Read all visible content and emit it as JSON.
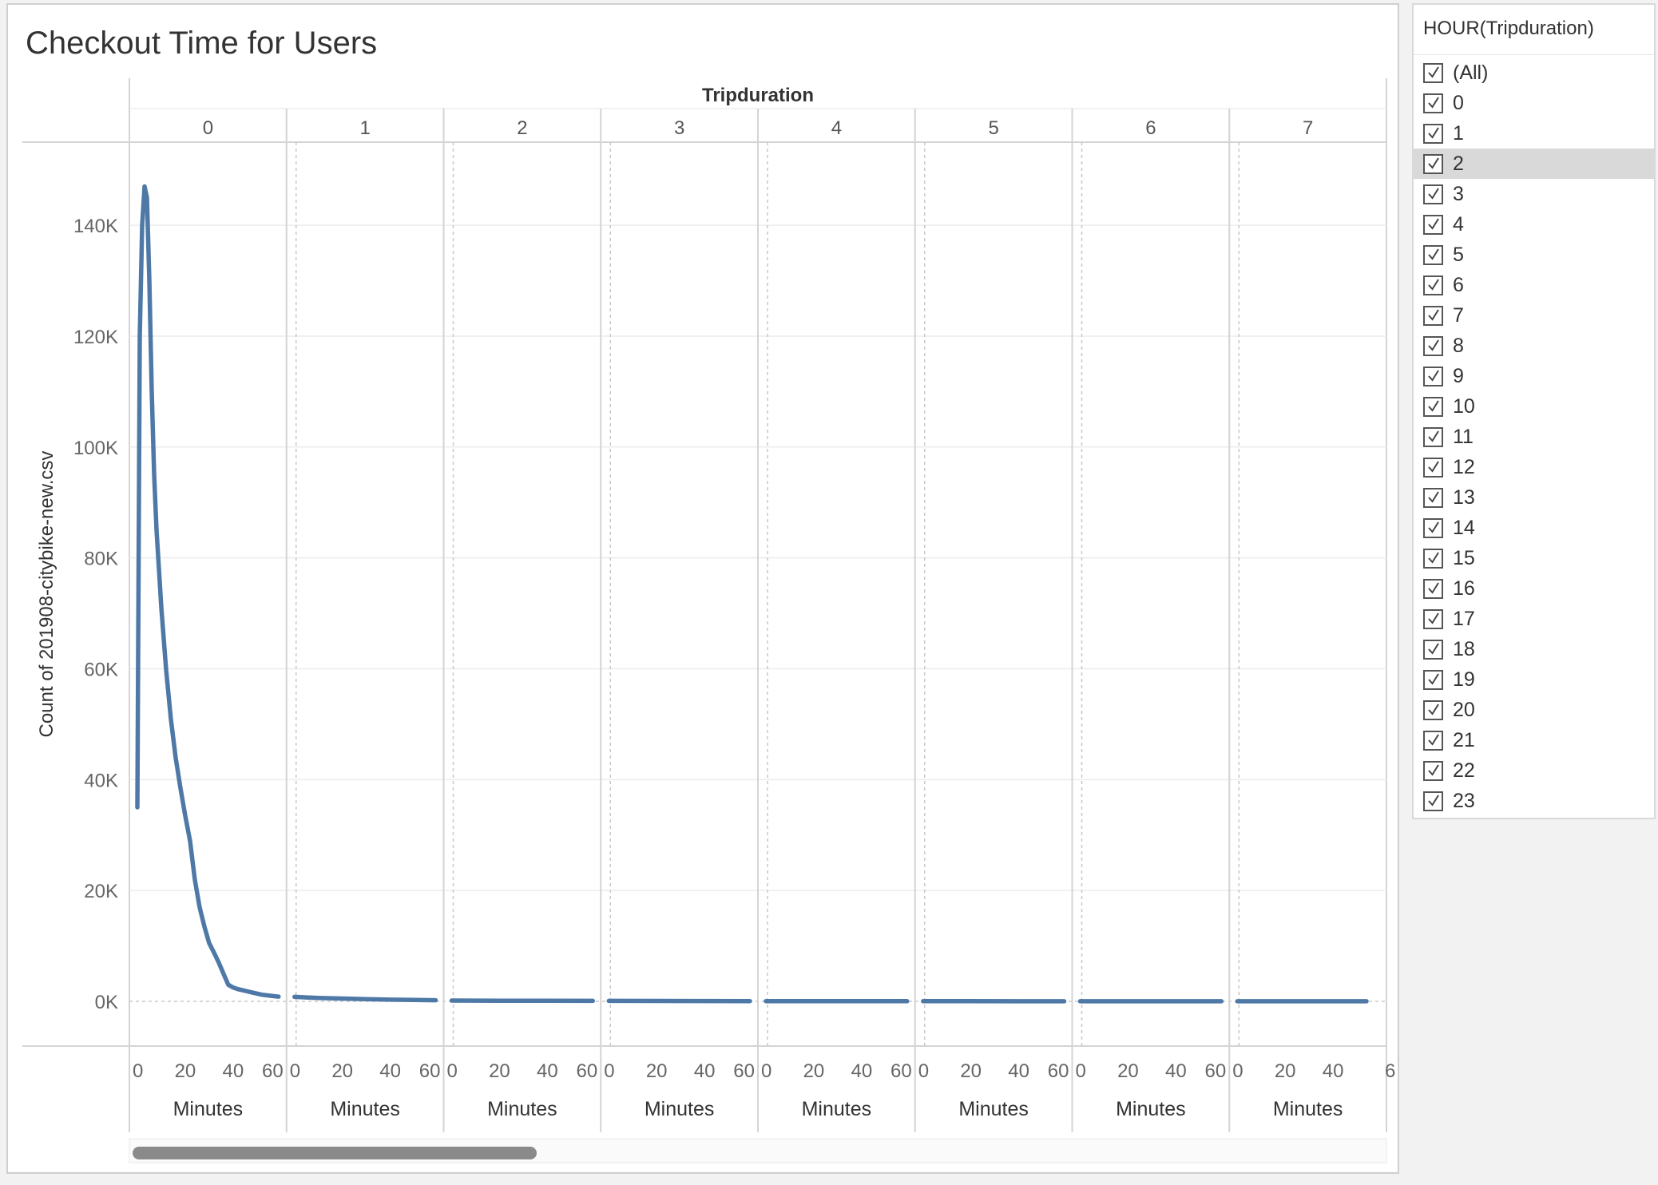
{
  "title": "Checkout Time for Users",
  "filter": {
    "title": "HOUR(Tripduration)",
    "items": [
      {
        "label": "(All)",
        "checked": true
      },
      {
        "label": "0",
        "checked": true
      },
      {
        "label": "1",
        "checked": true
      },
      {
        "label": "2",
        "checked": true,
        "highlighted": true
      },
      {
        "label": "3",
        "checked": true
      },
      {
        "label": "4",
        "checked": true
      },
      {
        "label": "5",
        "checked": true
      },
      {
        "label": "6",
        "checked": true
      },
      {
        "label": "7",
        "checked": true
      },
      {
        "label": "8",
        "checked": true
      },
      {
        "label": "9",
        "checked": true
      },
      {
        "label": "10",
        "checked": true
      },
      {
        "label": "11",
        "checked": true
      },
      {
        "label": "12",
        "checked": true
      },
      {
        "label": "13",
        "checked": true
      },
      {
        "label": "14",
        "checked": true
      },
      {
        "label": "15",
        "checked": true
      },
      {
        "label": "16",
        "checked": true
      },
      {
        "label": "17",
        "checked": true
      },
      {
        "label": "18",
        "checked": true
      },
      {
        "label": "19",
        "checked": true
      },
      {
        "label": "20",
        "checked": true
      },
      {
        "label": "21",
        "checked": true
      },
      {
        "label": "22",
        "checked": true
      },
      {
        "label": "23",
        "checked": true
      }
    ]
  },
  "chart_data": {
    "type": "line",
    "title": "Checkout Time for Users",
    "column_header_title": "Tripduration",
    "panels": [
      "0",
      "1",
      "2",
      "3",
      "4",
      "5",
      "6",
      "7"
    ],
    "xlabel": "Minutes",
    "ylabel": "Count of 201908-citybike-new.csv",
    "x_ticks": [
      "0",
      "20",
      "40",
      "60"
    ],
    "last_panel_x_ticks": [
      "0",
      "20",
      "40",
      "6"
    ],
    "y_ticks": [
      "0K",
      "20K",
      "40K",
      "60K",
      "80K",
      "100K",
      "120K",
      "140K"
    ],
    "ylim": [
      0,
      155000
    ],
    "xlim": [
      0,
      59
    ],
    "line_color": "#4e79a7",
    "grid": true,
    "series": [
      {
        "panel": "0",
        "x": [
          0,
          1,
          2,
          3,
          4,
          5,
          6,
          7,
          8,
          10,
          12,
          14,
          16,
          18,
          20,
          22,
          24,
          26,
          28,
          30,
          32,
          34,
          36,
          38,
          40,
          42,
          44,
          46,
          48,
          50,
          52,
          54,
          56,
          58,
          59
        ],
        "values": [
          35000,
          120000,
          140000,
          147000,
          145000,
          130000,
          110000,
          95000,
          85000,
          71000,
          60000,
          51000,
          44000,
          38500,
          33500,
          29000,
          22000,
          17000,
          13500,
          10500,
          8800,
          7000,
          5000,
          3000,
          2500,
          2200,
          2000,
          1800,
          1600,
          1400,
          1200,
          1100,
          1000,
          900,
          850
        ]
      },
      {
        "panel": "1",
        "x": [
          0,
          5,
          10,
          20,
          30,
          40,
          50,
          59
        ],
        "values": [
          800,
          700,
          600,
          500,
          400,
          300,
          250,
          200
        ]
      },
      {
        "panel": "2",
        "x": [
          0,
          20,
          40,
          59
        ],
        "values": [
          150,
          120,
          100,
          80
        ]
      },
      {
        "panel": "3",
        "x": [
          0,
          20,
          40,
          59
        ],
        "values": [
          80,
          70,
          60,
          50
        ]
      },
      {
        "panel": "4",
        "x": [
          0,
          20,
          40,
          59
        ],
        "values": [
          50,
          40,
          35,
          30
        ]
      },
      {
        "panel": "5",
        "x": [
          0,
          20,
          40,
          59
        ],
        "values": [
          30,
          25,
          20,
          20
        ]
      },
      {
        "panel": "6",
        "x": [
          0,
          20,
          40,
          59
        ],
        "values": [
          20,
          15,
          15,
          10
        ]
      },
      {
        "panel": "7",
        "x": [
          0,
          20,
          40,
          54
        ],
        "values": [
          10,
          10,
          10,
          10
        ]
      }
    ]
  }
}
